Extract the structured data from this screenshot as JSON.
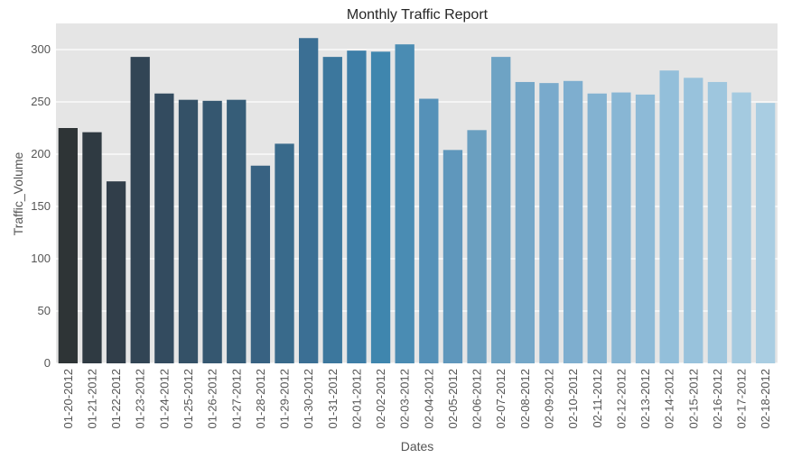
{
  "chart_data": {
    "type": "bar",
    "title": "Monthly Traffic Report",
    "xlabel": "Dates",
    "ylabel": "Traffic_Volume",
    "ylim": [
      0,
      325
    ],
    "yticks": [
      0,
      50,
      100,
      150,
      200,
      250,
      300
    ],
    "grid": true,
    "legend": "none",
    "categories": [
      "01-20-2012",
      "01-21-2012",
      "01-22-2012",
      "01-23-2012",
      "01-24-2012",
      "01-25-2012",
      "01-26-2012",
      "01-27-2012",
      "01-28-2012",
      "01-29-2012",
      "01-30-2012",
      "01-31-2012",
      "02-01-2012",
      "02-02-2012",
      "02-03-2012",
      "02-04-2012",
      "02-05-2012",
      "02-06-2012",
      "02-07-2012",
      "02-08-2012",
      "02-09-2012",
      "02-10-2012",
      "02-11-2012",
      "02-12-2012",
      "02-13-2012",
      "02-14-2012",
      "02-15-2012",
      "02-16-2012",
      "02-17-2012",
      "02-18-2012"
    ],
    "values": [
      225,
      221,
      174,
      293,
      258,
      252,
      251,
      252,
      189,
      210,
      311,
      293,
      299,
      298,
      305,
      253,
      204,
      223,
      293,
      269,
      268,
      270,
      258,
      259,
      257,
      280,
      273,
      269,
      259,
      249
    ],
    "colors": [
      "#2e3436",
      "#2f3a42",
      "#313e4a",
      "#324555",
      "#334b5f",
      "#345167",
      "#355770",
      "#365d78",
      "#386282",
      "#396a8b",
      "#3b6f94",
      "#3c779d",
      "#3e7ea7",
      "#3f86ae",
      "#4a8cb3",
      "#5591b8",
      "#5f97bc",
      "#6a9fc0",
      "#6ea3c4",
      "#74a7c8",
      "#79aacc",
      "#7eaecf",
      "#83b2d1",
      "#88b6d4",
      "#8dbad7",
      "#93bfda",
      "#98c2dc",
      "#9ec6de",
      "#a4cae0",
      "#a9cde2"
    ]
  }
}
